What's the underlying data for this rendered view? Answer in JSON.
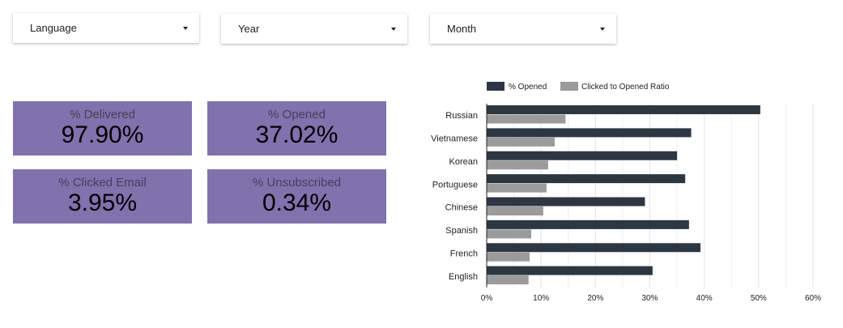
{
  "filters": [
    {
      "label": "Language"
    },
    {
      "label": "Year"
    },
    {
      "label": "Month"
    }
  ],
  "kpis": [
    {
      "label": "% Delivered",
      "value": "97.90%"
    },
    {
      "label": "% Opened",
      "value": "37.02%"
    },
    {
      "label": "% Clicked Email",
      "value": "3.95%"
    },
    {
      "label": "% Unsubscribed",
      "value": "0.34%"
    }
  ],
  "colors": {
    "kpi_bg": "#7f72ad",
    "opened": "#2d3742",
    "clicked": "#9b9b9b"
  },
  "chart_data": {
    "type": "bar",
    "orientation": "horizontal",
    "categories": [
      "Russian",
      "Vietnamese",
      "Korean",
      "Portuguese",
      "Chinese",
      "Spanish",
      "French",
      "English"
    ],
    "series": [
      {
        "name": "% Opened",
        "color": "#2d3742",
        "values": [
          50.3,
          37.6,
          35.0,
          36.5,
          29.1,
          37.2,
          39.3,
          30.5
        ]
      },
      {
        "name": "Clicked to Opened Ratio",
        "color": "#9b9b9b",
        "values": [
          14.5,
          12.5,
          11.3,
          11.0,
          10.4,
          8.2,
          7.9,
          7.7
        ]
      }
    ],
    "xlim": [
      0,
      60
    ],
    "xticks": [
      "0%",
      "10%",
      "20%",
      "30%",
      "40%",
      "50%",
      "60%"
    ],
    "grid": true,
    "legend": "top-left"
  }
}
